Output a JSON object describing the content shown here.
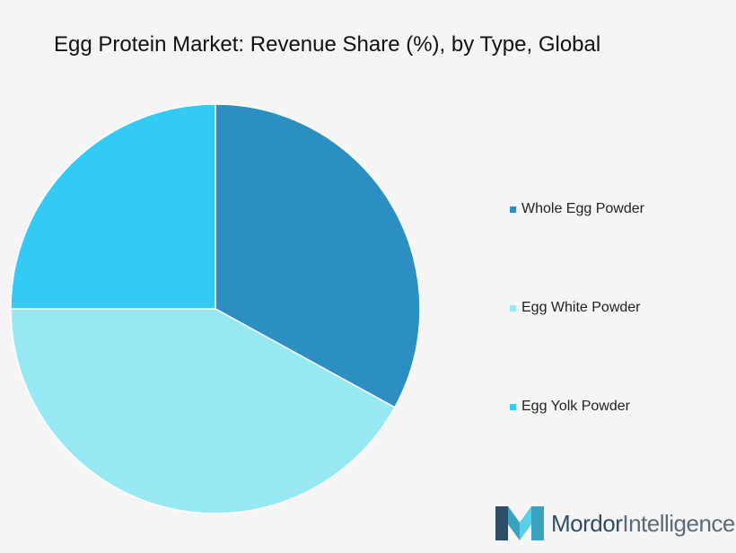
{
  "chart_data": {
    "type": "pie",
    "title": "Egg Protein Market: Revenue Share (%), by Type, Global",
    "series": [
      {
        "name": "Whole Egg Powder",
        "value": 33,
        "color": "#2b8fc1"
      },
      {
        "name": "Egg White Powder",
        "value": 42,
        "color": "#96e8f2"
      },
      {
        "name": "Egg Yolk Powder",
        "value": 25,
        "color": "#33cbf6"
      }
    ],
    "legend_position": "right"
  },
  "logo": {
    "text_bold": "Mordor",
    "text_light": "Intelligence",
    "colors": {
      "dark": "#2d4e66",
      "mid": "#3aa1bf",
      "light": "#5ad0e8"
    }
  }
}
